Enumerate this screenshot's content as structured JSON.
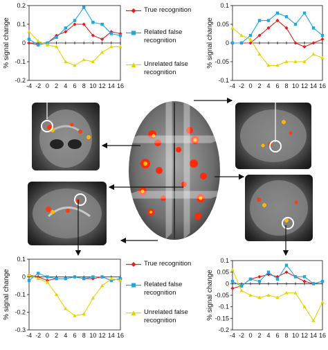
{
  "legend": {
    "items": [
      {
        "label": "True recognition",
        "color": "#e02020",
        "marker": "diamond"
      },
      {
        "label": "Related false recognition",
        "color": "#1ea7e0",
        "marker": "square"
      },
      {
        "label": "Unrelated false recognition",
        "color": "#e8d200",
        "marker": "triangle"
      }
    ],
    "top_lines": [
      "True recognition",
      "Related false",
      "recognition",
      "Unrelated false",
      "recognition"
    ],
    "bottom_lines": [
      "True recognition",
      "Related false",
      "recognition",
      "Unrelated false",
      "recognition"
    ]
  },
  "chart_data": [
    {
      "type": "line",
      "position": "top-left",
      "ylabel": "% signal change",
      "x": [
        -4,
        -2,
        0,
        2,
        4,
        6,
        8,
        10,
        12,
        14,
        16
      ],
      "xticks": [
        "-4",
        "-2",
        "0",
        "2",
        "4",
        "6",
        "8",
        "10",
        "12",
        "14",
        "16"
      ],
      "ylim": [
        -0.2,
        0.2
      ],
      "yticks": [
        "0.2",
        "0.1",
        "0",
        "-0.1",
        "-0.2"
      ],
      "series": [
        {
          "name": "True recognition",
          "values": [
            0.0,
            -0.01,
            0.0,
            0.04,
            0.06,
            0.1,
            0.1,
            0.04,
            0.02,
            0.06,
            0.05
          ]
        },
        {
          "name": "Related false recognition",
          "values": [
            0.02,
            -0.01,
            0.0,
            0.03,
            0.08,
            0.12,
            0.19,
            0.11,
            0.1,
            0.05,
            0.04
          ]
        },
        {
          "name": "Unrelated false recognition",
          "values": [
            0.06,
            0.01,
            -0.01,
            -0.02,
            -0.1,
            -0.12,
            -0.09,
            -0.1,
            -0.05,
            -0.02,
            -0.02
          ]
        }
      ]
    },
    {
      "type": "line",
      "position": "top-right",
      "ylabel": "% signal change",
      "x": [
        -4,
        -2,
        0,
        2,
        4,
        6,
        8,
        10,
        12,
        14,
        16
      ],
      "xticks": [
        "-4",
        "-2",
        "0",
        "2",
        "4",
        "6",
        "8",
        "10",
        "12",
        "14",
        "16"
      ],
      "ylim": [
        -0.1,
        0.1
      ],
      "yticks": [
        "0.1",
        "0.05",
        "0",
        "-0.05",
        "-0.1"
      ],
      "series": [
        {
          "name": "True recognition",
          "values": [
            0.0,
            0.0,
            0.0,
            0.02,
            0.04,
            0.06,
            0.04,
            0.0,
            -0.01,
            0.0,
            0.01
          ]
        },
        {
          "name": "Related false recognition",
          "values": [
            0.0,
            0.0,
            0.02,
            0.06,
            0.06,
            0.08,
            0.07,
            0.05,
            0.08,
            0.04,
            0.02
          ]
        },
        {
          "name": "Unrelated false recognition",
          "values": [
            0.04,
            0.02,
            0.01,
            -0.03,
            -0.06,
            -0.06,
            -0.05,
            -0.05,
            -0.05,
            -0.03,
            -0.04
          ]
        }
      ]
    },
    {
      "type": "line",
      "position": "bottom-left",
      "ylabel": "% signal change",
      "x": [
        -4,
        -2,
        0,
        2,
        4,
        6,
        8,
        10,
        12,
        14,
        16
      ],
      "xticks": [
        "-4",
        "-2",
        "0",
        "2",
        "4",
        "6",
        "8",
        "10",
        "12",
        "14",
        "16"
      ],
      "ylim": [
        -0.3,
        0.1
      ],
      "yticks": [
        "0.1",
        "0",
        "-0.1",
        "-0.2",
        "-0.3"
      ],
      "series": [
        {
          "name": "True recognition",
          "values": [
            0.01,
            0.0,
            -0.02,
            -0.01,
            -0.01,
            0.0,
            -0.01,
            -0.01,
            0.0,
            -0.02,
            -0.01
          ]
        },
        {
          "name": "Related false recognition",
          "values": [
            -0.02,
            0.02,
            0.0,
            -0.01,
            -0.01,
            0.0,
            -0.01,
            0.0,
            0.0,
            -0.02,
            -0.01
          ]
        },
        {
          "name": "Unrelated false recognition",
          "values": [
            0.01,
            -0.01,
            -0.03,
            -0.1,
            -0.18,
            -0.22,
            -0.21,
            -0.12,
            -0.05,
            -0.01,
            -0.02
          ]
        }
      ]
    },
    {
      "type": "line",
      "position": "bottom-right",
      "ylabel": "% signal change",
      "x": [
        -4,
        -2,
        0,
        2,
        4,
        6,
        8,
        10,
        12,
        14,
        16
      ],
      "xticks": [
        "-4",
        "-2",
        "0",
        "2",
        "4",
        "6",
        "8",
        "10",
        "12",
        "14",
        "16"
      ],
      "ylim": [
        -0.2,
        0.1
      ],
      "yticks": [
        "0.1",
        "0.05",
        "0",
        "-0.05",
        "-0.1",
        "-0.15",
        "-0.2"
      ],
      "series": [
        {
          "name": "True recognition",
          "values": [
            -0.02,
            -0.01,
            0.02,
            0.03,
            0.04,
            0.03,
            0.05,
            0.03,
            0.01,
            0.0,
            0.01
          ]
        },
        {
          "name": "Related false recognition",
          "values": [
            0.01,
            -0.01,
            0.02,
            0.01,
            0.05,
            0.02,
            0.08,
            0.03,
            0.03,
            0.0,
            0.01
          ]
        },
        {
          "name": "Unrelated false recognition",
          "values": [
            0.06,
            -0.03,
            -0.05,
            -0.06,
            -0.05,
            -0.06,
            -0.04,
            -0.04,
            -0.1,
            -0.16,
            -0.08
          ]
        }
      ]
    }
  ]
}
